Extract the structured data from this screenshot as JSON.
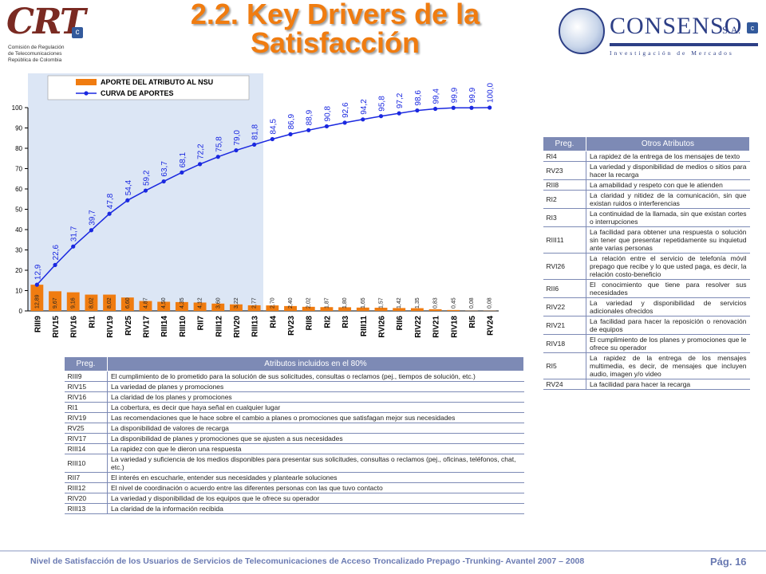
{
  "header": {
    "title_line1": "2.2. Key Drivers de la",
    "title_line2": "Satisfacción",
    "crt_logo_text": "CRT",
    "crt_sub": [
      "Comisión de Regulación",
      "de Telecomunicaciones",
      "República de Colombia"
    ],
    "consenso_name": "CONSENSO",
    "consenso_sa": "S.A.",
    "consenso_sub": "Investigación de Mercados",
    "badge": "c"
  },
  "chart_data": {
    "type": "bar",
    "categories": [
      "RIII9",
      "RIV15",
      "RIV16",
      "RI1",
      "RIV19",
      "RV25",
      "RIV17",
      "RIII14",
      "RIII10",
      "RII7",
      "RIII12",
      "RIV20",
      "RIII13",
      "RI4",
      "RV23",
      "RII8",
      "RI2",
      "RI3",
      "RIII11",
      "RVI26",
      "RII6",
      "RIV22",
      "RIV21",
      "RIV18",
      "RI5",
      "RV24"
    ],
    "series": [
      {
        "name": "APORTE DEL ATRIBUTO AL NSU",
        "type": "bar",
        "color": "#f07c10",
        "values": [
          12.89,
          9.67,
          9.16,
          8.02,
          8.02,
          6.6,
          4.87,
          4.5,
          4.35,
          4.12,
          3.6,
          3.22,
          2.77,
          2.7,
          2.4,
          2.02,
          1.87,
          1.8,
          1.65,
          1.57,
          1.42,
          1.35,
          0.83,
          0.45,
          0.08,
          0.08
        ],
        "labels": [
          "12,89",
          "9,67",
          "9,16",
          "8,02",
          "8,02",
          "6,60",
          "4,87",
          "4,50",
          "4,35",
          "4,12",
          "3,60",
          "3,22",
          "2,77",
          "2,70",
          "2,40",
          "2,02",
          "1,87",
          "1,80",
          "1,65",
          "1,57",
          "1,42",
          "1,35",
          "0,83",
          "0,45",
          "0,08",
          "0,08"
        ]
      },
      {
        "name": "CURVA DE APORTES",
        "type": "line",
        "color": "#1a28e0",
        "values": [
          12.9,
          22.6,
          31.7,
          39.7,
          47.8,
          54.4,
          59.2,
          63.7,
          68.1,
          72.2,
          75.8,
          79.0,
          81.8,
          84.5,
          86.9,
          88.9,
          90.8,
          92.6,
          94.2,
          95.8,
          97.2,
          98.6,
          99.4,
          99.9,
          99.9,
          100.0
        ],
        "labels": [
          "12,9",
          "22,6",
          "31,7",
          "39,7",
          "47,8",
          "54,4",
          "59,2",
          "63,7",
          "68,1",
          "72,2",
          "75,8",
          "79,0",
          "81,8",
          "84,5",
          "86,9",
          "88,9",
          "90,8",
          "92,6",
          "94,2",
          "95,8",
          "97,2",
          "98,6",
          "99,4",
          "99,9",
          "99,9",
          "100,0"
        ]
      }
    ],
    "ylim": [
      0,
      100
    ],
    "yticks": [
      "0",
      "10",
      "20",
      "30",
      "40",
      "50",
      "60",
      "70",
      "80",
      "90",
      "100"
    ],
    "highlight_region": "first 13 attributes (80%)",
    "legend_position": "top-left",
    "grid": false
  },
  "main_table": {
    "headers": [
      "Preg.",
      "Atributos incluidos en el 80%"
    ],
    "rows": [
      [
        "RIII9",
        "El cumplimiento de lo prometido para la solución de sus solicitudes, consultas o reclamos (pej., tiempos de solución, etc.)"
      ],
      [
        "RIV15",
        "La variedad de planes y promociones"
      ],
      [
        "RIV16",
        "La claridad de los planes y promociones"
      ],
      [
        "RI1",
        "La cobertura, es decir que haya señal en cualquier lugar"
      ],
      [
        "RIV19",
        "Las recomendaciones que le hace sobre el cambio a planes o promociones que satisfagan mejor sus necesidades"
      ],
      [
        "RV25",
        "La disponibilidad de valores de recarga"
      ],
      [
        "RIV17",
        "La disponibilidad de planes y promociones que se ajusten a sus necesidades"
      ],
      [
        "RIII14",
        "La rapidez con que le dieron una respuesta"
      ],
      [
        "RIII10",
        "La variedad y suficiencia de los medios disponibles para presentar sus solicitudes, consultas o reclamos (pej., oficinas, teléfonos, chat, etc.)"
      ],
      [
        "RII7",
        "El interés en escucharle, entender sus necesidades y plantearle soluciones"
      ],
      [
        "RIII12",
        "El nivel de coordinación o acuerdo entre las diferentes personas con las que tuvo contacto"
      ],
      [
        "RIV20",
        "La variedad y disponibilidad de los equipos que le ofrece su operador"
      ],
      [
        "RIII13",
        "La claridad de la información recibida"
      ]
    ]
  },
  "side_table": {
    "headers": [
      "Preg.",
      "Otros Atributos"
    ],
    "rows": [
      [
        "RI4",
        "La rapidez de la entrega de los mensajes de texto"
      ],
      [
        "RV23",
        "La variedad y disponibilidad de medios o sitios para hacer la recarga"
      ],
      [
        "RII8",
        "La amabilidad y respeto con que le atienden"
      ],
      [
        "RI2",
        "La claridad y nitidez de la comunicación, sin que existan ruidos o interferencias"
      ],
      [
        "RI3",
        "La continuidad de la llamada, sin que existan cortes o interrupciones"
      ],
      [
        "RIII11",
        "La facilidad para obtener una respuesta o solución sin tener que presentar repetidamente su inquietud ante varias personas"
      ],
      [
        "RVI26",
        "La relación entre el servicio de telefonía móvil prepago que recibe y lo que usted paga, es decir, la relación costo-beneficio"
      ],
      [
        "RII6",
        "El conocimiento que tiene para resolver sus necesidades"
      ],
      [
        "RIV22",
        "La variedad y disponibilidad de servicios adicionales ofrecidos"
      ],
      [
        "RIV21",
        "La facilidad para hacer la reposición o renovación de equipos"
      ],
      [
        "RIV18",
        "El cumplimiento de los planes y promociones que le ofrece su operador"
      ],
      [
        "RI5",
        "La rapidez de la entrega de los mensajes multimedia, es decir, de mensajes que incluyen audio, imagen y/o video"
      ],
      [
        "RV24",
        "La facilidad para hacer la recarga"
      ]
    ]
  },
  "footer": {
    "text": "Nivel de Satisfacción de los Usuarios de Servicios de Telecomunicaciones de Acceso Troncalizado Prepago -Trunking- Avantel 2007 – 2008",
    "page": "Pág. 16"
  }
}
